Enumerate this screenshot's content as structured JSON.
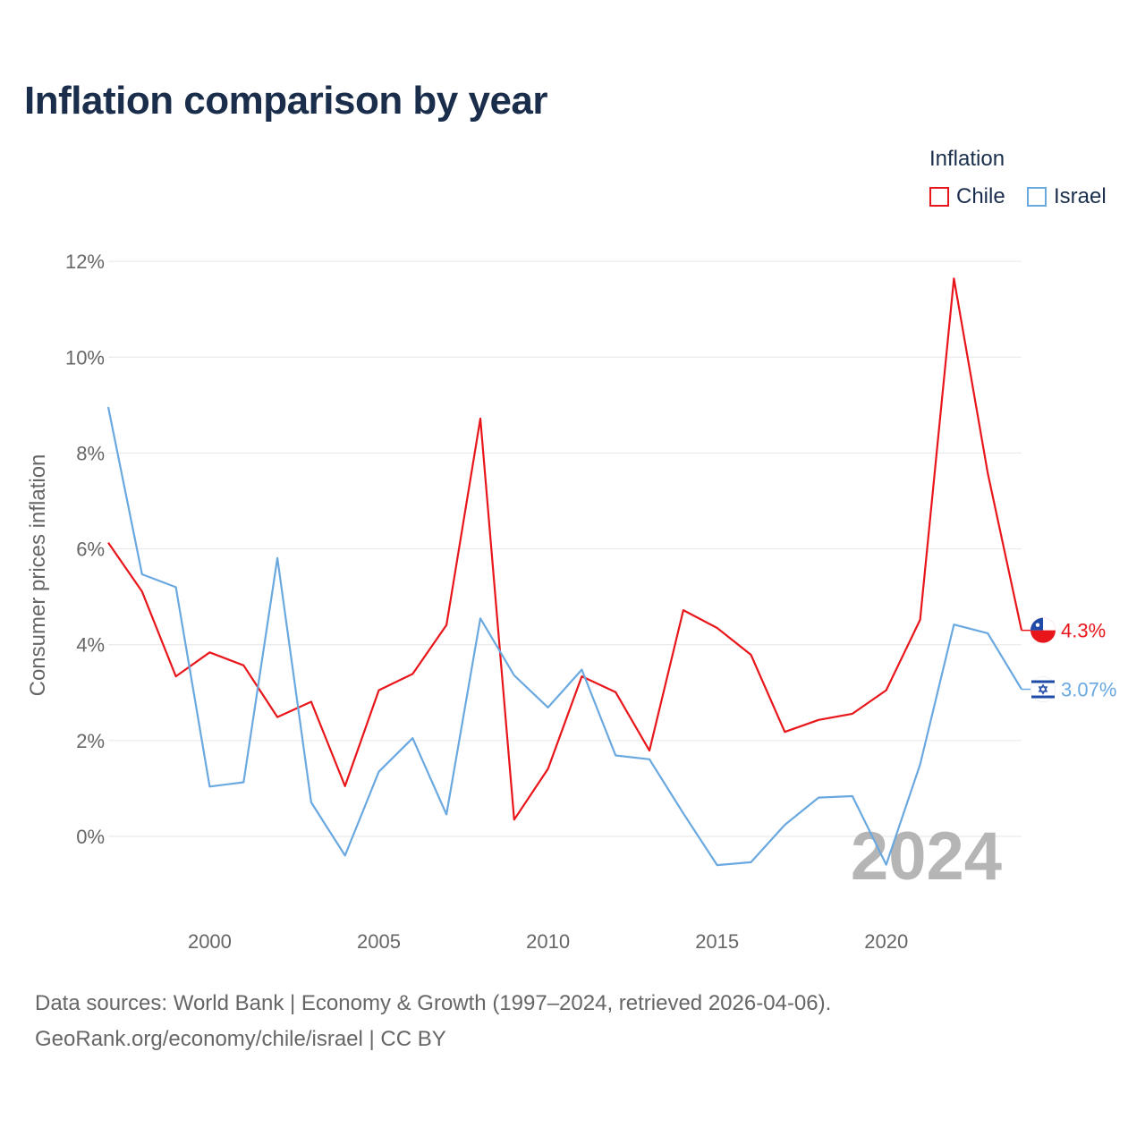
{
  "chart_data": {
    "type": "line",
    "title": "Inflation comparison by year",
    "ylabel": "Consumer prices inflation",
    "xlabel": "",
    "x": [
      1997,
      1998,
      1999,
      2000,
      2001,
      2002,
      2003,
      2004,
      2005,
      2006,
      2007,
      2008,
      2009,
      2010,
      2011,
      2012,
      2013,
      2014,
      2015,
      2016,
      2017,
      2018,
      2019,
      2020,
      2021,
      2022,
      2023,
      2024
    ],
    "series": [
      {
        "name": "Chile",
        "color": "#e8161b",
        "values": [
          6.13,
          5.11,
          3.34,
          3.84,
          3.57,
          2.49,
          2.81,
          1.05,
          3.05,
          3.39,
          4.41,
          8.72,
          0.35,
          1.41,
          3.34,
          3.01,
          1.79,
          4.72,
          4.35,
          3.79,
          2.18,
          2.43,
          2.56,
          3.05,
          4.52,
          11.64,
          7.58,
          4.3
        ],
        "end_label": "4.3%"
      },
      {
        "name": "Israel",
        "color": "#6aa8e0",
        "values": [
          8.96,
          5.47,
          5.2,
          1.04,
          1.13,
          5.81,
          0.71,
          -0.4,
          1.35,
          2.05,
          0.46,
          4.55,
          3.36,
          2.69,
          3.48,
          1.69,
          1.61,
          0.48,
          -0.6,
          -0.54,
          0.24,
          0.81,
          0.84,
          -0.59,
          1.5,
          4.42,
          4.24,
          3.07
        ],
        "end_label": "3.07%"
      }
    ],
    "yticks": [
      0,
      2,
      4,
      6,
      8,
      10,
      12
    ],
    "ytick_labels": [
      "0%",
      "2%",
      "4%",
      "6%",
      "8%",
      "10%",
      "12%"
    ],
    "xticks": [
      2000,
      2005,
      2010,
      2015,
      2020
    ],
    "xtick_labels": [
      "2000",
      "2005",
      "2010",
      "2015",
      "2020"
    ],
    "ylim": [
      -1.4,
      12.6
    ],
    "xlim": [
      1997,
      2024
    ],
    "grid": true,
    "legend": {
      "title": "Inflation",
      "placement": "top-right"
    },
    "year_watermark": "2024"
  },
  "footer": {
    "line1": "Data sources: World Bank | Economy & Growth (1997–2024, retrieved 2026-04-06).",
    "line2": "GeoRank.org/economy/chile/israel | CC BY"
  }
}
